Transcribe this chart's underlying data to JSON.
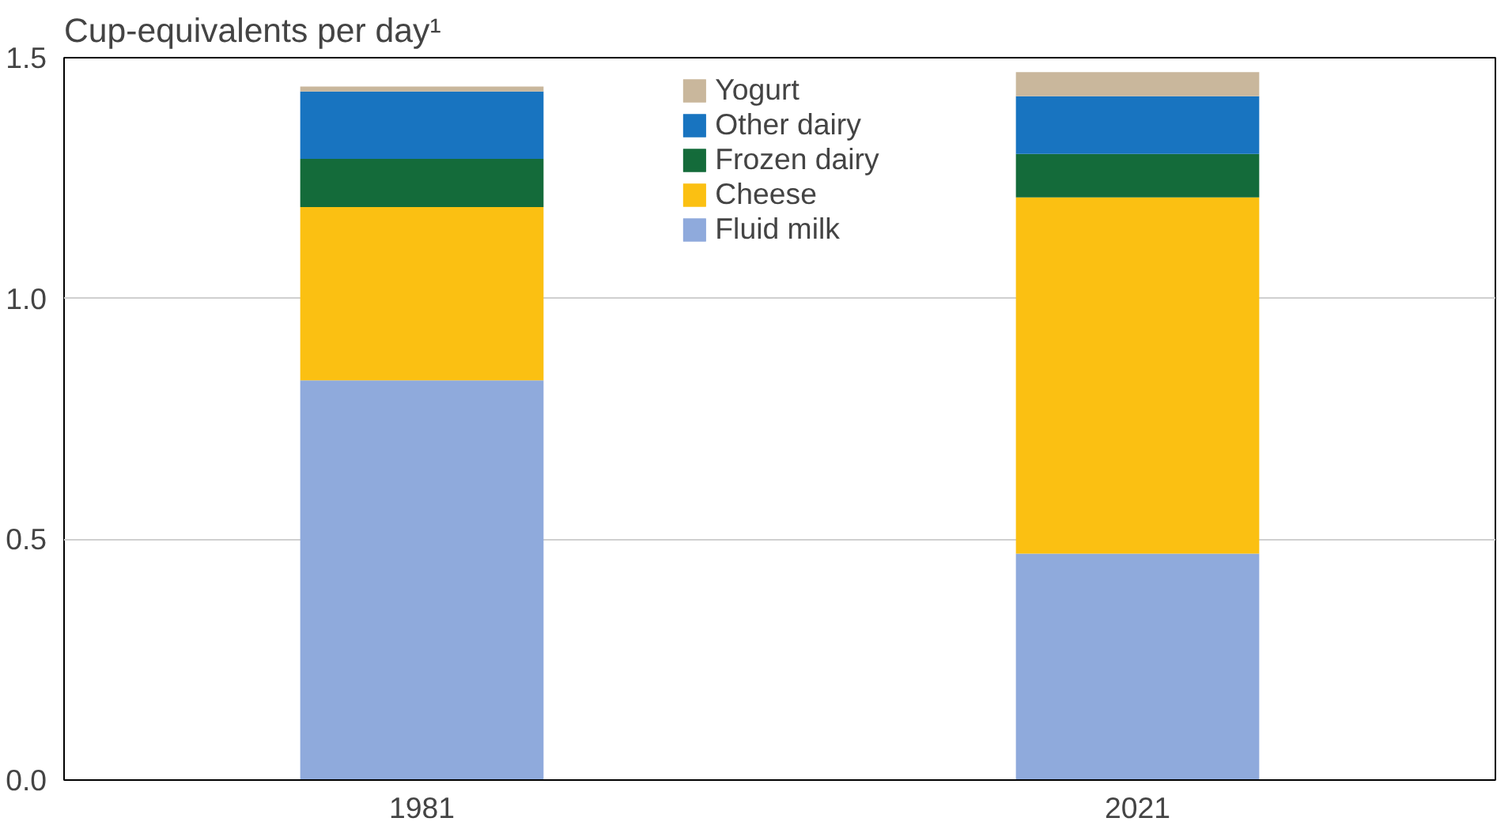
{
  "chart_data": {
    "type": "bar",
    "stacked": true,
    "ylabel": "Cup-equivalents per day¹",
    "categories": [
      "1981",
      "2021"
    ],
    "series": [
      {
        "name": "Fluid milk",
        "color": "#8faadc",
        "values": [
          0.83,
          0.47
        ]
      },
      {
        "name": "Cheese",
        "color": "#fbc012",
        "values": [
          0.36,
          0.74
        ]
      },
      {
        "name": "Frozen dairy",
        "color": "#146b3a",
        "values": [
          0.1,
          0.09
        ]
      },
      {
        "name": "Other dairy",
        "color": "#1874c0",
        "values": [
          0.14,
          0.12
        ]
      },
      {
        "name": "Yogurt",
        "color": "#c9b79c",
        "values": [
          0.01,
          0.05
        ]
      }
    ],
    "ylim": [
      0,
      1.5
    ],
    "yticks": [
      {
        "value": 0,
        "label": "0.0"
      },
      {
        "value": 0.5,
        "label": "0.5"
      },
      {
        "value": 1,
        "label": "1.0"
      },
      {
        "value": 1.5,
        "label": "1.5"
      }
    ],
    "grid": "y",
    "legend": "top"
  }
}
